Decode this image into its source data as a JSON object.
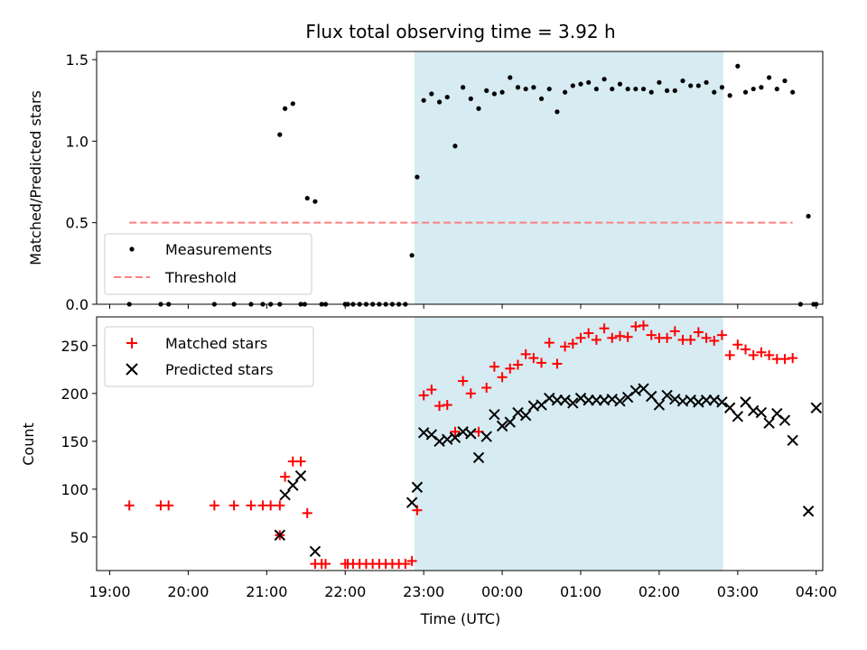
{
  "chart_data": [
    {
      "type": "scatter",
      "title": "Flux total observing time = 3.92 h",
      "ylabel": "Matched/Predicted stars",
      "xlabel": "",
      "xlim": [
        "18:50",
        "04:05"
      ],
      "ylim": [
        0,
        1.55
      ],
      "yticks": [
        "0.0",
        "0.5",
        "1.0",
        "1.5"
      ],
      "grid": false,
      "legend_position": "lower-left",
      "shaded_interval": [
        "22:53",
        "02:49"
      ],
      "series": [
        {
          "name": "Measurements",
          "marker": "dot",
          "color": "#000000",
          "points": [
            [
              "19:15",
              0
            ],
            [
              "19:39",
              0
            ],
            [
              "19:45",
              0
            ],
            [
              "20:20",
              0
            ],
            [
              "20:35",
              0
            ],
            [
              "20:48",
              0
            ],
            [
              "20:57",
              0
            ],
            [
              "21:03",
              0
            ],
            [
              "21:10",
              0
            ],
            [
              "21:10",
              1.04
            ],
            [
              "21:14",
              1.2
            ],
            [
              "21:20",
              1.23
            ],
            [
              "21:26",
              0
            ],
            [
              "21:29",
              0
            ],
            [
              "21:31",
              0.65
            ],
            [
              "21:37",
              0.63
            ],
            [
              "21:42",
              0
            ],
            [
              "21:45",
              0
            ],
            [
              "22:00",
              0
            ],
            [
              "22:02",
              0
            ],
            [
              "22:06",
              0
            ],
            [
              "22:11",
              0
            ],
            [
              "22:16",
              0
            ],
            [
              "22:21",
              0
            ],
            [
              "22:26",
              0
            ],
            [
              "22:31",
              0
            ],
            [
              "22:36",
              0
            ],
            [
              "22:41",
              0
            ],
            [
              "22:46",
              0
            ],
            [
              "22:51",
              0.3
            ],
            [
              "22:55",
              0.78
            ],
            [
              "23:00",
              1.25
            ],
            [
              "23:06",
              1.29
            ],
            [
              "23:12",
              1.24
            ],
            [
              "23:18",
              1.27
            ],
            [
              "23:24",
              0.97
            ],
            [
              "23:30",
              1.33
            ],
            [
              "23:36",
              1.26
            ],
            [
              "23:42",
              1.2
            ],
            [
              "23:48",
              1.31
            ],
            [
              "23:54",
              1.29
            ],
            [
              "00:00",
              1.3
            ],
            [
              "00:06",
              1.39
            ],
            [
              "00:12",
              1.33
            ],
            [
              "00:18",
              1.32
            ],
            [
              "00:24",
              1.33
            ],
            [
              "00:30",
              1.26
            ],
            [
              "00:36",
              1.32
            ],
            [
              "00:42",
              1.18
            ],
            [
              "00:48",
              1.3
            ],
            [
              "00:54",
              1.34
            ],
            [
              "01:00",
              1.35
            ],
            [
              "01:06",
              1.36
            ],
            [
              "01:12",
              1.32
            ],
            [
              "01:18",
              1.38
            ],
            [
              "01:24",
              1.32
            ],
            [
              "01:30",
              1.35
            ],
            [
              "01:36",
              1.32
            ],
            [
              "01:42",
              1.32
            ],
            [
              "01:48",
              1.32
            ],
            [
              "01:54",
              1.3
            ],
            [
              "02:00",
              1.36
            ],
            [
              "02:06",
              1.31
            ],
            [
              "02:12",
              1.31
            ],
            [
              "02:18",
              1.37
            ],
            [
              "02:24",
              1.34
            ],
            [
              "02:30",
              1.34
            ],
            [
              "02:36",
              1.36
            ],
            [
              "02:42",
              1.3
            ],
            [
              "02:48",
              1.33
            ],
            [
              "02:54",
              1.28
            ],
            [
              "03:00",
              1.46
            ],
            [
              "03:06",
              1.3
            ],
            [
              "03:12",
              1.32
            ],
            [
              "03:18",
              1.33
            ],
            [
              "03:24",
              1.39
            ],
            [
              "03:30",
              1.32
            ],
            [
              "03:36",
              1.37
            ],
            [
              "03:42",
              1.3
            ],
            [
              "03:48",
              0
            ],
            [
              "03:54",
              0.54
            ],
            [
              "03:58",
              0
            ],
            [
              "04:00",
              0
            ]
          ]
        },
        {
          "name": "Threshold",
          "line": "dashed",
          "color": "#ff8080",
          "x": [
            "19:15",
            "03:42"
          ],
          "y": [
            0.5,
            0.5
          ]
        }
      ]
    },
    {
      "type": "scatter",
      "title": "",
      "ylabel": "Count",
      "xlabel": "Time (UTC)",
      "xlim": [
        "18:50",
        "04:05"
      ],
      "ylim": [
        15,
        280
      ],
      "yticks": [
        "50",
        "100",
        "150",
        "200",
        "250"
      ],
      "xticks": [
        "19:00",
        "20:00",
        "21:00",
        "22:00",
        "23:00",
        "00:00",
        "01:00",
        "02:00",
        "03:00",
        "04:00"
      ],
      "grid": false,
      "legend_position": "upper-left",
      "shaded_interval": [
        "22:53",
        "02:49"
      ],
      "series": [
        {
          "name": "Matched stars",
          "marker": "plus",
          "color": "#ff0000",
          "points": [
            [
              "19:15",
              83
            ],
            [
              "19:39",
              83
            ],
            [
              "19:45",
              83
            ],
            [
              "20:20",
              83
            ],
            [
              "20:35",
              83
            ],
            [
              "20:48",
              83
            ],
            [
              "20:57",
              83
            ],
            [
              "21:03",
              83
            ],
            [
              "21:10",
              83
            ],
            [
              "21:10",
              52
            ],
            [
              "21:14",
              113
            ],
            [
              "21:20",
              129
            ],
            [
              "21:26",
              129
            ],
            [
              "21:31",
              75
            ],
            [
              "21:37",
              22
            ],
            [
              "21:42",
              22
            ],
            [
              "21:45",
              22
            ],
            [
              "22:00",
              22
            ],
            [
              "22:02",
              22
            ],
            [
              "22:06",
              22
            ],
            [
              "22:11",
              22
            ],
            [
              "22:16",
              22
            ],
            [
              "22:21",
              22
            ],
            [
              "22:26",
              22
            ],
            [
              "22:31",
              22
            ],
            [
              "22:36",
              22
            ],
            [
              "22:41",
              22
            ],
            [
              "22:46",
              22
            ],
            [
              "22:51",
              25
            ],
            [
              "22:55",
              78
            ],
            [
              "23:00",
              198
            ],
            [
              "23:06",
              204
            ],
            [
              "23:12",
              187
            ],
            [
              "23:18",
              188
            ],
            [
              "23:24",
              160
            ],
            [
              "23:30",
              213
            ],
            [
              "23:36",
              200
            ],
            [
              "23:42",
              160
            ],
            [
              "23:48",
              206
            ],
            [
              "23:54",
              228
            ],
            [
              "00:00",
              217
            ],
            [
              "00:06",
              226
            ],
            [
              "00:12",
              230
            ],
            [
              "00:18",
              241
            ],
            [
              "00:24",
              237
            ],
            [
              "00:30",
              232
            ],
            [
              "00:36",
              253
            ],
            [
              "00:42",
              231
            ],
            [
              "00:48",
              249
            ],
            [
              "00:54",
              252
            ],
            [
              "01:00",
              258
            ],
            [
              "01:06",
              263
            ],
            [
              "01:12",
              256
            ],
            [
              "01:18",
              268
            ],
            [
              "01:24",
              258
            ],
            [
              "01:30",
              260
            ],
            [
              "01:36",
              259
            ],
            [
              "01:42",
              270
            ],
            [
              "01:48",
              271
            ],
            [
              "01:54",
              261
            ],
            [
              "02:00",
              258
            ],
            [
              "02:06",
              258
            ],
            [
              "02:12",
              265
            ],
            [
              "02:18",
              256
            ],
            [
              "02:24",
              256
            ],
            [
              "02:30",
              264
            ],
            [
              "02:36",
              258
            ],
            [
              "02:42",
              255
            ],
            [
              "02:48",
              261
            ],
            [
              "02:54",
              240
            ],
            [
              "03:00",
              251
            ],
            [
              "03:06",
              246
            ],
            [
              "03:12",
              240
            ],
            [
              "03:18",
              243
            ],
            [
              "03:24",
              240
            ],
            [
              "03:30",
              236
            ],
            [
              "03:36",
              236
            ],
            [
              "03:42",
              237
            ]
          ]
        },
        {
          "name": "Predicted stars",
          "marker": "x",
          "color": "#000000",
          "points": [
            [
              "21:10",
              52
            ],
            [
              "21:14",
              94
            ],
            [
              "21:20",
              104
            ],
            [
              "21:26",
              114
            ],
            [
              "21:37",
              35
            ],
            [
              "22:51",
              86
            ],
            [
              "22:55",
              102
            ],
            [
              "23:00",
              159
            ],
            [
              "23:06",
              157
            ],
            [
              "23:12",
              150
            ],
            [
              "23:18",
              152
            ],
            [
              "23:24",
              154
            ],
            [
              "23:30",
              160
            ],
            [
              "23:36",
              158
            ],
            [
              "23:42",
              133
            ],
            [
              "23:48",
              155
            ],
            [
              "23:54",
              178
            ],
            [
              "00:00",
              166
            ],
            [
              "00:06",
              170
            ],
            [
              "00:12",
              180
            ],
            [
              "00:18",
              177
            ],
            [
              "00:24",
              187
            ],
            [
              "00:30",
              188
            ],
            [
              "00:36",
              195
            ],
            [
              "00:42",
              193
            ],
            [
              "00:48",
              193
            ],
            [
              "00:54",
              190
            ],
            [
              "01:00",
              195
            ],
            [
              "01:06",
              193
            ],
            [
              "01:12",
              193
            ],
            [
              "01:18",
              193
            ],
            [
              "01:24",
              194
            ],
            [
              "01:30",
              192
            ],
            [
              "01:36",
              196
            ],
            [
              "01:42",
              203
            ],
            [
              "01:48",
              205
            ],
            [
              "01:54",
              197
            ],
            [
              "02:00",
              188
            ],
            [
              "02:06",
              198
            ],
            [
              "02:12",
              194
            ],
            [
              "02:18",
              192
            ],
            [
              "02:24",
              193
            ],
            [
              "02:30",
              191
            ],
            [
              "02:36",
              193
            ],
            [
              "02:42",
              193
            ],
            [
              "02:48",
              191
            ],
            [
              "02:54",
              185
            ],
            [
              "03:00",
              176
            ],
            [
              "03:06",
              191
            ],
            [
              "03:12",
              182
            ],
            [
              "03:18",
              180
            ],
            [
              "03:24",
              169
            ],
            [
              "03:30",
              179
            ],
            [
              "03:36",
              172
            ],
            [
              "03:42",
              151
            ],
            [
              "03:54",
              77
            ],
            [
              "04:00",
              185
            ]
          ]
        }
      ]
    }
  ]
}
